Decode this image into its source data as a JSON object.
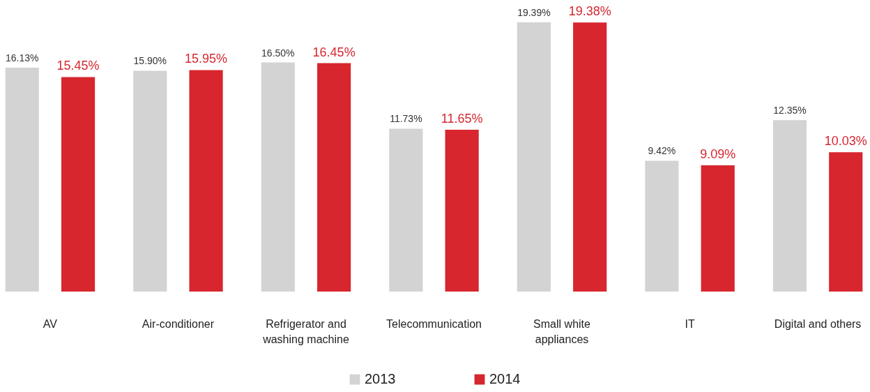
{
  "chart_data": {
    "type": "bar",
    "categories": [
      "AV",
      "Air-conditioner",
      "Refrigerator and washing machine",
      "Telecommunication",
      "Small white appliances",
      "IT",
      "Digital and others"
    ],
    "series": [
      {
        "name": "2013",
        "color": "#d3d3d3",
        "values": [
          16.13,
          15.9,
          16.5,
          11.73,
          19.39,
          9.42,
          12.35
        ],
        "value_labels": [
          "16.13%",
          "15.90%",
          "16.50%",
          "11.73%",
          "19.39%",
          "9.42%",
          "12.35%"
        ]
      },
      {
        "name": "2014",
        "color": "#d7262e",
        "values": [
          15.45,
          15.95,
          16.45,
          11.65,
          19.38,
          9.09,
          10.03
        ],
        "value_labels": [
          "15.45%",
          "15.95%",
          "16.45%",
          "11.65%",
          "19.38%",
          "9.09%",
          "10.03%"
        ]
      }
    ],
    "legend": "bottom"
  }
}
